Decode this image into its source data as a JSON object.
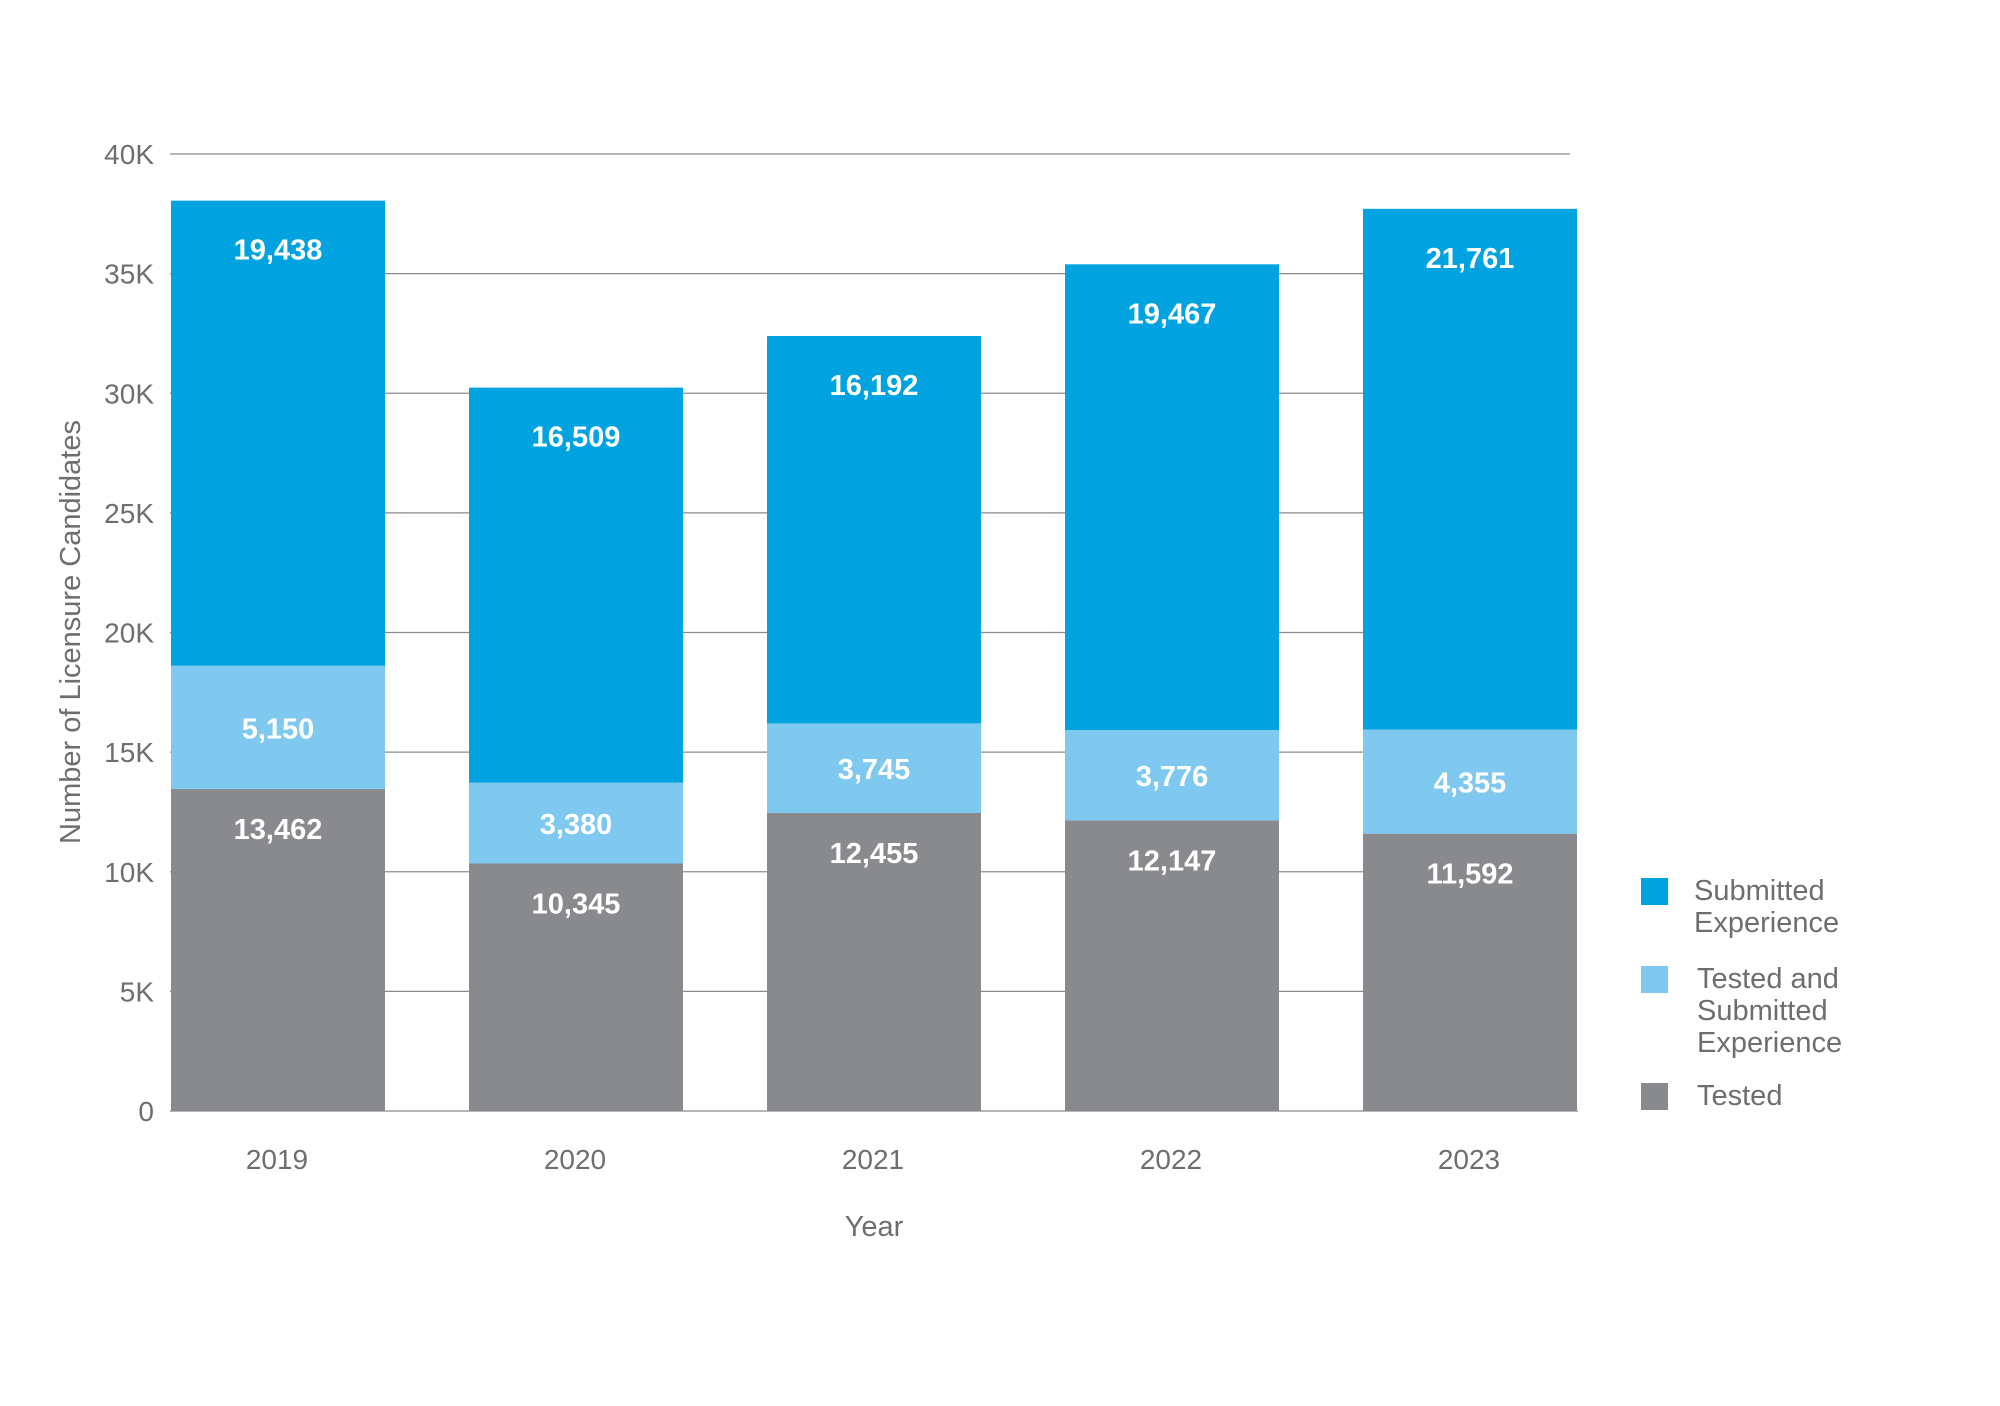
{
  "chart_data": {
    "type": "bar",
    "stacked": true,
    "categories": [
      "2019",
      "2020",
      "2021",
      "2022",
      "2023"
    ],
    "series": [
      {
        "name": "Tested",
        "color": "#898a8d",
        "values": [
          13462,
          10345,
          12455,
          12147,
          11592
        ],
        "labels": [
          "13,462",
          "10,345",
          "12,455",
          "12,147",
          "11,592"
        ]
      },
      {
        "name": "Tested and Submitted Experience",
        "color": "#7fc8ef",
        "values": [
          5150,
          3380,
          3745,
          3776,
          4355
        ],
        "labels": [
          "5,150",
          "3,380",
          "3,745",
          "3,776",
          "4,355"
        ]
      },
      {
        "name": "Submitted Experience",
        "color": "#00a3e0",
        "values": [
          19438,
          16509,
          16192,
          19467,
          21761
        ],
        "labels": [
          "19,438",
          "16,509",
          "16,192",
          "19,467",
          "21,761"
        ]
      }
    ],
    "legend": [
      {
        "lines": [
          "Submitted",
          "Experience"
        ],
        "color": "#00a3e0"
      },
      {
        "lines": [
          "Tested and",
          "Submitted",
          "Experience"
        ],
        "color": "#7fc8ef"
      },
      {
        "lines": [
          "Tested"
        ],
        "color": "#898a8d"
      }
    ],
    "legend_position": "bottom-right",
    "xlabel": "Year",
    "ylabel": "Number of Licensure Candidates",
    "ylim": [
      0,
      40000
    ],
    "y_ticks": [
      {
        "value": 0,
        "label": "0"
      },
      {
        "value": 5000,
        "label": "5K"
      },
      {
        "value": 10000,
        "label": "10K"
      },
      {
        "value": 15000,
        "label": "15K"
      },
      {
        "value": 20000,
        "label": "20K"
      },
      {
        "value": 25000,
        "label": "25K"
      },
      {
        "value": 30000,
        "label": "30K"
      },
      {
        "value": 35000,
        "label": "35K"
      },
      {
        "value": 40000,
        "label": "40K"
      }
    ],
    "grid": true
  }
}
